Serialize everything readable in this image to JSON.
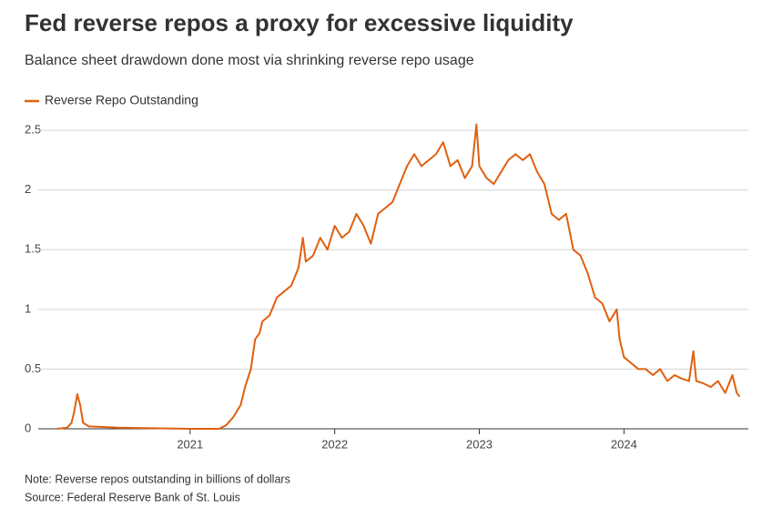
{
  "chart_data": {
    "type": "line",
    "title": "Fed reverse repos a proxy for excessive liquidity",
    "subtitle": "Balance sheet drawdown done most via shrinking reverse repo usage",
    "note": "Note: Reverse repos outstanding in billions of dollars",
    "source": "Source: Federal Reserve Bank of St. Louis",
    "x": [
      2020.08,
      2020.15,
      2020.18,
      2020.2,
      2020.22,
      2020.24,
      2020.26,
      2020.3,
      2020.5,
      2021.0,
      2021.2,
      2021.25,
      2021.3,
      2021.35,
      2021.38,
      2021.42,
      2021.45,
      2021.48,
      2021.5,
      2021.55,
      2021.6,
      2021.65,
      2021.7,
      2021.75,
      2021.78,
      2021.8,
      2021.85,
      2021.9,
      2021.95,
      2022.0,
      2022.05,
      2022.1,
      2022.15,
      2022.2,
      2022.25,
      2022.3,
      2022.35,
      2022.4,
      2022.45,
      2022.5,
      2022.55,
      2022.6,
      2022.7,
      2022.75,
      2022.8,
      2022.85,
      2022.9,
      2022.95,
      2022.98,
      2023.0,
      2023.05,
      2023.1,
      2023.15,
      2023.2,
      2023.25,
      2023.3,
      2023.35,
      2023.4,
      2023.45,
      2023.5,
      2023.55,
      2023.6,
      2023.65,
      2023.7,
      2023.75,
      2023.8,
      2023.85,
      2023.9,
      2023.95,
      2023.97,
      2024.0,
      2024.05,
      2024.1,
      2024.15,
      2024.2,
      2024.25,
      2024.3,
      2024.35,
      2024.4,
      2024.45,
      2024.48,
      2024.5,
      2024.55,
      2024.6,
      2024.65,
      2024.7,
      2024.75,
      2024.78,
      2024.8
    ],
    "series": [
      {
        "name": "Reverse Repo Outstanding",
        "color": "#e0600f",
        "values": [
          0.0,
          0.01,
          0.05,
          0.15,
          0.29,
          0.2,
          0.05,
          0.02,
          0.01,
          0.0,
          0.0,
          0.03,
          0.1,
          0.2,
          0.35,
          0.5,
          0.75,
          0.8,
          0.9,
          0.95,
          1.1,
          1.15,
          1.2,
          1.35,
          1.6,
          1.4,
          1.45,
          1.6,
          1.5,
          1.7,
          1.6,
          1.65,
          1.8,
          1.7,
          1.55,
          1.8,
          1.85,
          1.9,
          2.05,
          2.2,
          2.3,
          2.2,
          2.3,
          2.4,
          2.2,
          2.25,
          2.1,
          2.2,
          2.55,
          2.2,
          2.1,
          2.05,
          2.15,
          2.25,
          2.3,
          2.25,
          2.3,
          2.15,
          2.05,
          1.8,
          1.75,
          1.8,
          1.5,
          1.45,
          1.3,
          1.1,
          1.05,
          0.9,
          1.0,
          0.75,
          0.6,
          0.55,
          0.5,
          0.5,
          0.45,
          0.5,
          0.4,
          0.45,
          0.42,
          0.4,
          0.65,
          0.4,
          0.38,
          0.35,
          0.4,
          0.3,
          0.45,
          0.3,
          0.27
        ]
      }
    ],
    "xlim": [
      2019.95,
      2024.86
    ],
    "xticks": [
      2021,
      2022,
      2023,
      2024
    ],
    "ylim": [
      0,
      2.6
    ],
    "yticks": [
      0,
      0.5,
      1,
      1.5,
      2,
      2.5
    ],
    "grid": true
  }
}
